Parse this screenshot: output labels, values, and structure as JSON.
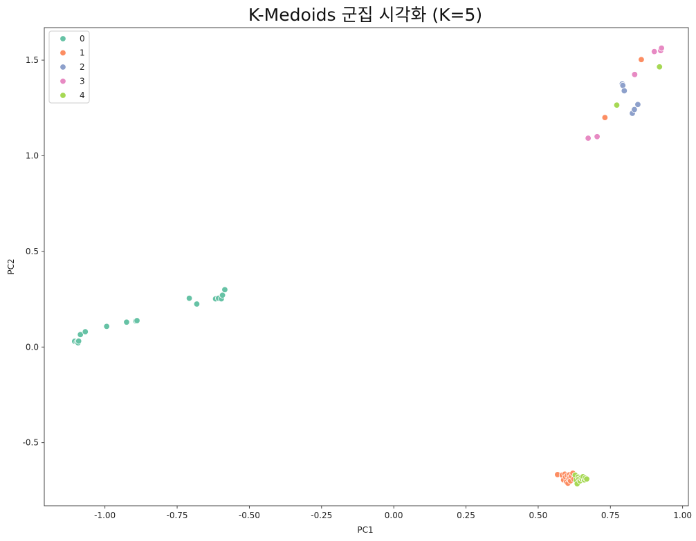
{
  "chart_data": {
    "type": "scatter",
    "title": "K-Medoids 군집 시각화 (K=5)",
    "xlabel": "PC1",
    "ylabel": "PC2",
    "xlim": [
      -1.21,
      1.02
    ],
    "ylim": [
      -0.83,
      1.67
    ],
    "xticks": [
      -1.0,
      -0.75,
      -0.5,
      -0.25,
      0.0,
      0.25,
      0.5,
      0.75,
      1.0
    ],
    "xtick_labels": [
      "-1.00",
      "-0.75",
      "-0.50",
      "-0.25",
      "0.00",
      "0.25",
      "0.50",
      "0.75",
      "1.00"
    ],
    "yticks": [
      -0.5,
      0.0,
      0.5,
      1.0,
      1.5
    ],
    "ytick_labels": [
      "-0.5",
      "0.0",
      "0.5",
      "1.0",
      "1.5"
    ],
    "grid": false,
    "legend": "top-left",
    "series": [
      {
        "name": "0",
        "color": "#66c2a5",
        "points": [
          [
            -1.105,
            0.03
          ],
          [
            -1.097,
            0.025
          ],
          [
            -1.093,
            0.022
          ],
          [
            -1.091,
            0.031
          ],
          [
            -1.085,
            0.065
          ],
          [
            -1.068,
            0.08
          ],
          [
            -0.994,
            0.108
          ],
          [
            -0.925,
            0.13
          ],
          [
            -0.893,
            0.136
          ],
          [
            -0.889,
            0.138
          ],
          [
            -0.708,
            0.255
          ],
          [
            -0.682,
            0.225
          ],
          [
            -0.617,
            0.252
          ],
          [
            -0.607,
            0.255
          ],
          [
            -0.597,
            0.252
          ],
          [
            -0.593,
            0.271
          ],
          [
            -0.585,
            0.3
          ]
        ]
      },
      {
        "name": "1",
        "color": "#fc8d62",
        "points": [
          [
            0.567,
            -0.667
          ],
          [
            0.583,
            -0.67
          ],
          [
            0.588,
            -0.695
          ],
          [
            0.592,
            -0.665
          ],
          [
            0.595,
            -0.68
          ],
          [
            0.598,
            -0.705
          ],
          [
            0.601,
            -0.672
          ],
          [
            0.603,
            -0.712
          ],
          [
            0.606,
            -0.69
          ],
          [
            0.608,
            -0.668
          ],
          [
            0.61,
            -0.683
          ],
          [
            0.612,
            -0.7
          ],
          [
            0.615,
            -0.675
          ],
          [
            0.62,
            -0.66
          ],
          [
            0.623,
            -0.69
          ],
          [
            0.731,
            1.2
          ],
          [
            0.857,
            1.503
          ]
        ]
      },
      {
        "name": "2",
        "color": "#8da0cb",
        "points": [
          [
            0.791,
            1.376
          ],
          [
            0.793,
            1.368
          ],
          [
            0.798,
            1.34
          ],
          [
            0.826,
            1.222
          ],
          [
            0.833,
            1.242
          ],
          [
            0.845,
            1.268
          ]
        ]
      },
      {
        "name": "3",
        "color": "#e78ac3",
        "points": [
          [
            0.673,
            1.092
          ],
          [
            0.704,
            1.1
          ],
          [
            0.834,
            1.425
          ],
          [
            0.902,
            1.545
          ],
          [
            0.924,
            1.55
          ],
          [
            0.927,
            1.563
          ]
        ]
      },
      {
        "name": "4",
        "color": "#a6d854",
        "points": [
          [
            0.628,
            -0.67
          ],
          [
            0.631,
            -0.696
          ],
          [
            0.635,
            -0.715
          ],
          [
            0.638,
            -0.68
          ],
          [
            0.641,
            -0.69
          ],
          [
            0.645,
            -0.7
          ],
          [
            0.648,
            -0.685
          ],
          [
            0.652,
            -0.69
          ],
          [
            0.655,
            -0.678
          ],
          [
            0.66,
            -0.695
          ],
          [
            0.663,
            -0.685
          ],
          [
            0.668,
            -0.69
          ],
          [
            0.772,
            1.265
          ],
          [
            0.92,
            1.465
          ]
        ]
      }
    ]
  }
}
